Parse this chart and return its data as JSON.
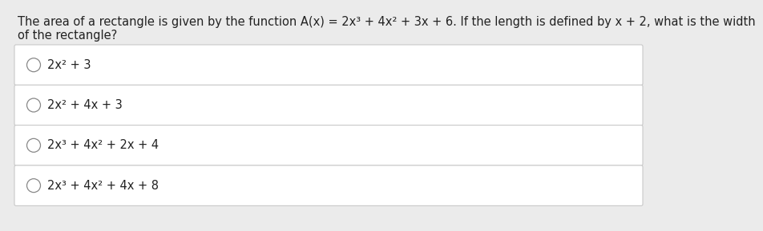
{
  "question_line1": "The area of a rectangle is given by the function A(x) = 2x³ + 4x² + 3x + 6. If the length is defined by x + 2, what is the width",
  "question_line2": "of the rectangle?",
  "options": [
    "2x² + 3",
    "2x² + 4x + 3",
    "2x³ + 4x² + 2x + 4",
    "2x³ + 4x² + 4x + 8"
  ],
  "bg_color": "#ebebeb",
  "box_color": "#ffffff",
  "box_border_color": "#c8c8c8",
  "question_fontsize": 10.5,
  "option_fontsize": 10.5,
  "text_color": "#222222",
  "circle_color": "#888888",
  "fig_width": 8.0,
  "fig_height": 2.69
}
